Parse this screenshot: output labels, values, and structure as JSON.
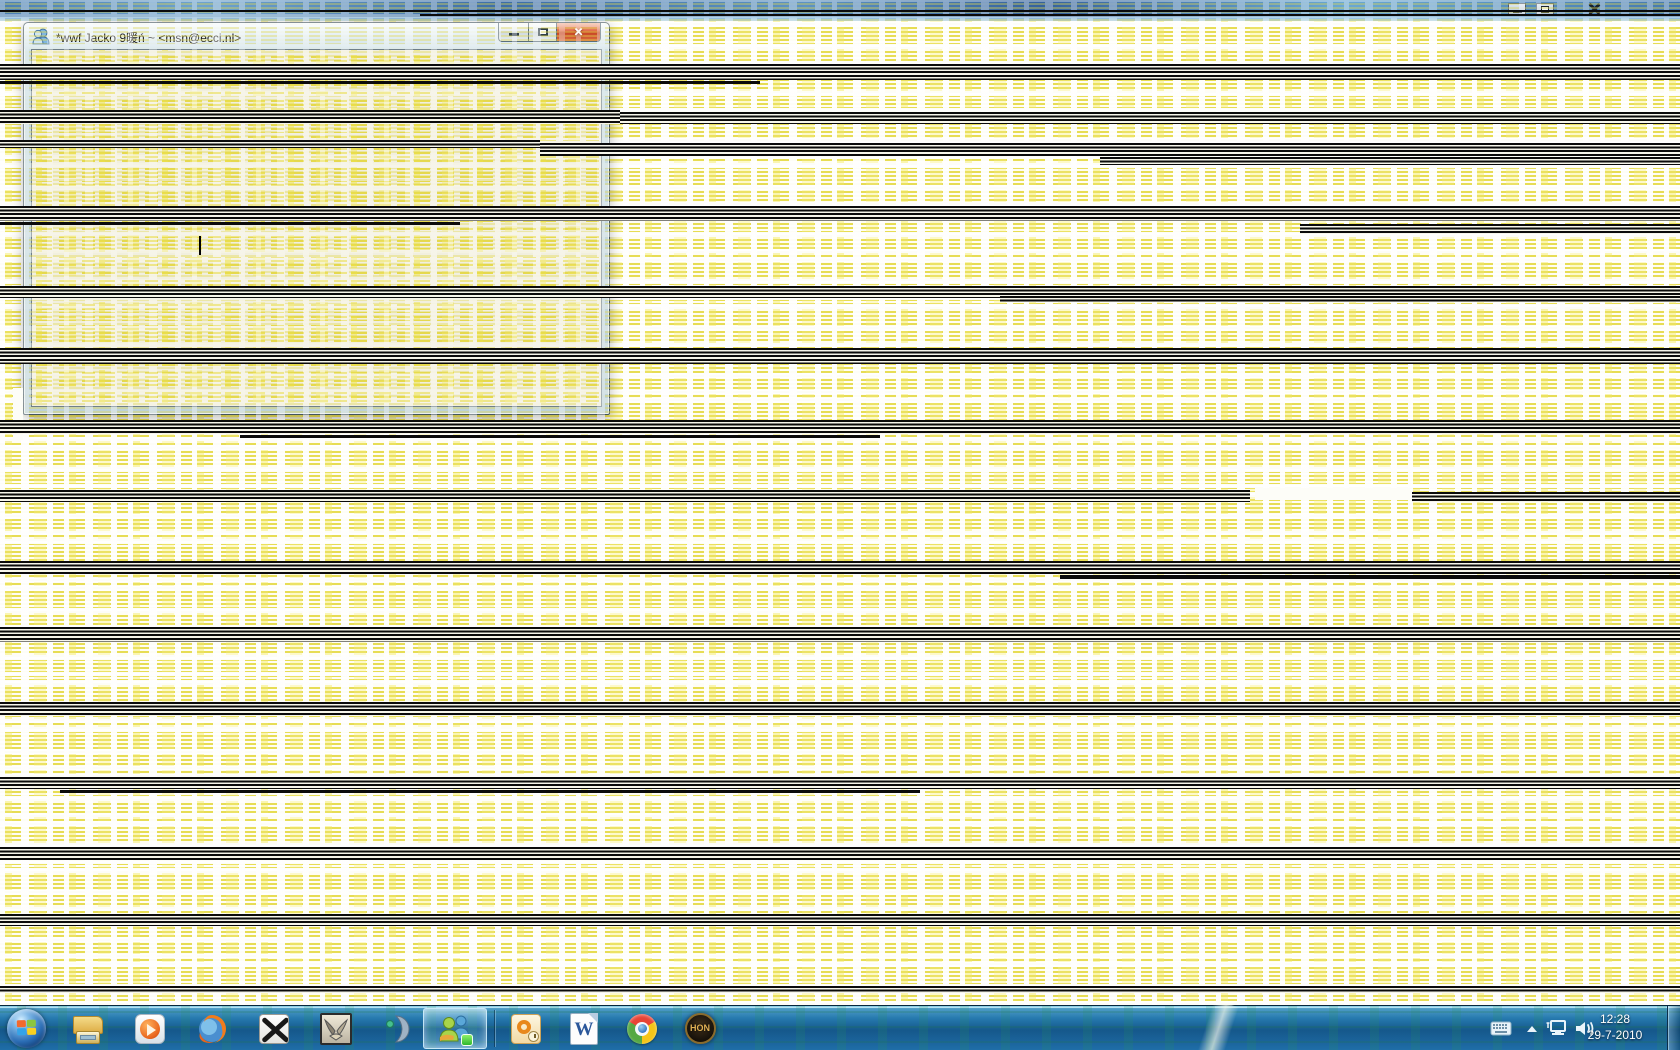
{
  "ghost_window": {
    "controls": [
      {
        "name": "minimize"
      },
      {
        "name": "restore"
      },
      {
        "name": "close"
      }
    ]
  },
  "messenger_window": {
    "title": "*wwf Jacko 9暖ń ~ <msn@ecci.nl>",
    "title_icon": "msn-buddies-icon",
    "controls": {
      "minimize": "minimize",
      "maximize": "maximize",
      "close_glyph": "✕"
    }
  },
  "taskbar": {
    "start": {
      "name": "start-button"
    },
    "items": [
      {
        "name": "windows-explorer"
      },
      {
        "name": "windows-media-player"
      },
      {
        "name": "firefox"
      },
      {
        "name": "xfire"
      },
      {
        "name": "winged-emblem-game"
      },
      {
        "name": "crescent-app"
      },
      {
        "name": "windows-live-messenger",
        "active": true
      },
      {
        "name": "outlook"
      },
      {
        "name": "word",
        "glyph": "W"
      },
      {
        "name": "chrome"
      },
      {
        "name": "heroes-of-newerth",
        "glyph": "HON"
      }
    ],
    "tray": {
      "icons": [
        "keyboard-icon",
        "show-hidden-icons-icon",
        "network-icon",
        "volume-icon"
      ],
      "time": "12:28",
      "date": "29-7-2010",
      "show_desktop": "show-desktop-button"
    }
  },
  "colors": {
    "dither_yellow": "#ebe158",
    "taskbar_blue": "#15588b",
    "close_button_red": "#c74424"
  }
}
